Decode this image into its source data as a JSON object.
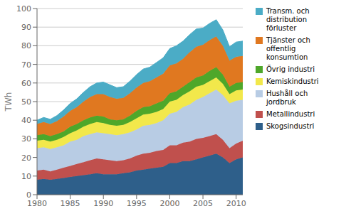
{
  "chart_data": {
    "type": "area",
    "stacked": true,
    "ylabel": "TWh",
    "x": [
      1980,
      1981,
      1982,
      1983,
      1984,
      1985,
      1986,
      1987,
      1988,
      1989,
      1990,
      1991,
      1992,
      1993,
      1994,
      1995,
      1996,
      1997,
      1998,
      1999,
      2000,
      2001,
      2002,
      2003,
      2004,
      2005,
      2006,
      2007,
      2008,
      2009,
      2010,
      2011
    ],
    "xlim": [
      1980,
      2011
    ],
    "xticks": [
      1980,
      1985,
      1990,
      1995,
      2000,
      2005,
      2010
    ],
    "ylim": [
      0,
      100
    ],
    "yticks": [
      0,
      10,
      20,
      30,
      40,
      50,
      60,
      70,
      80,
      90,
      100
    ],
    "grid": true,
    "legend": "right",
    "series": [
      {
        "name": "Skogsindustri",
        "color": "#2E5F8A",
        "values": [
          8,
          8.5,
          8,
          8.5,
          9,
          9.5,
          10,
          10.5,
          11,
          11.5,
          11,
          11,
          11,
          11.5,
          12,
          13,
          13.5,
          14,
          14.5,
          15,
          17,
          17,
          18,
          18,
          19,
          20,
          21,
          22,
          20,
          17,
          19,
          20
        ]
      },
      {
        "name": "Metallindustri",
        "color": "#C0504D",
        "values": [
          5,
          5,
          4.5,
          5,
          5.5,
          6,
          6.5,
          7,
          7.5,
          8,
          8,
          7.5,
          7,
          7,
          7.5,
          8,
          8.5,
          8.5,
          9,
          9,
          9.5,
          9.5,
          10,
          10.5,
          11,
          10.5,
          10.5,
          10.5,
          9.5,
          8,
          8.5,
          9
        ]
      },
      {
        "name": "Hushåll och\njordbruk",
        "color": "#B8CCE4",
        "values": [
          12,
          12,
          12,
          12,
          12,
          13,
          13,
          14,
          14,
          14,
          14,
          14,
          14,
          14,
          14,
          14,
          15,
          15,
          15,
          16,
          17,
          18,
          19,
          20,
          21,
          22,
          23,
          24,
          24,
          24,
          23,
          22
        ]
      },
      {
        "name": "Kemiskindustri",
        "color": "#F2E84B",
        "values": [
          4,
          4,
          4,
          4,
          4.5,
          4.5,
          5,
          5,
          5.5,
          5.5,
          5.5,
          5,
          5,
          5,
          5.5,
          6,
          6,
          6,
          6,
          6,
          6.5,
          6.5,
          6.5,
          7,
          7,
          6.5,
          6.5,
          6.5,
          6,
          5,
          5.5,
          5.5
        ]
      },
      {
        "name": "Övrig industri",
        "color": "#4EA72A",
        "values": [
          3,
          3,
          3,
          3,
          3,
          3.5,
          3.5,
          3.5,
          3.5,
          3.5,
          3.5,
          3,
          3,
          3,
          3.5,
          4,
          4,
          4,
          4.5,
          4.5,
          4.5,
          4.5,
          4.5,
          5,
          5,
          5,
          5.5,
          5.5,
          5,
          4,
          4,
          4
        ]
      },
      {
        "name": "Tjänster och\noffentlig\nkonsumtion",
        "color": "#E07820",
        "values": [
          6,
          6.5,
          6.5,
          7,
          8,
          8.5,
          9,
          10,
          11,
          11.5,
          12,
          12,
          11.5,
          11.5,
          12,
          12.5,
          13,
          13.5,
          14,
          14.5,
          15,
          15,
          15,
          16,
          16.5,
          16.5,
          16.5,
          16.5,
          15.5,
          14,
          14,
          14
        ]
      },
      {
        "name": "Transm. och\ndistribution\nförluster",
        "color": "#4BACC6",
        "values": [
          2,
          2.5,
          2.5,
          3,
          3.5,
          4,
          4.5,
          5,
          5.5,
          6,
          6.5,
          6.5,
          6,
          6,
          6.5,
          7,
          7.5,
          7.5,
          8,
          8.5,
          9,
          9.5,
          9.5,
          9.5,
          9.5,
          9,
          9,
          9,
          8.5,
          7.5,
          8,
          8
        ]
      }
    ]
  }
}
